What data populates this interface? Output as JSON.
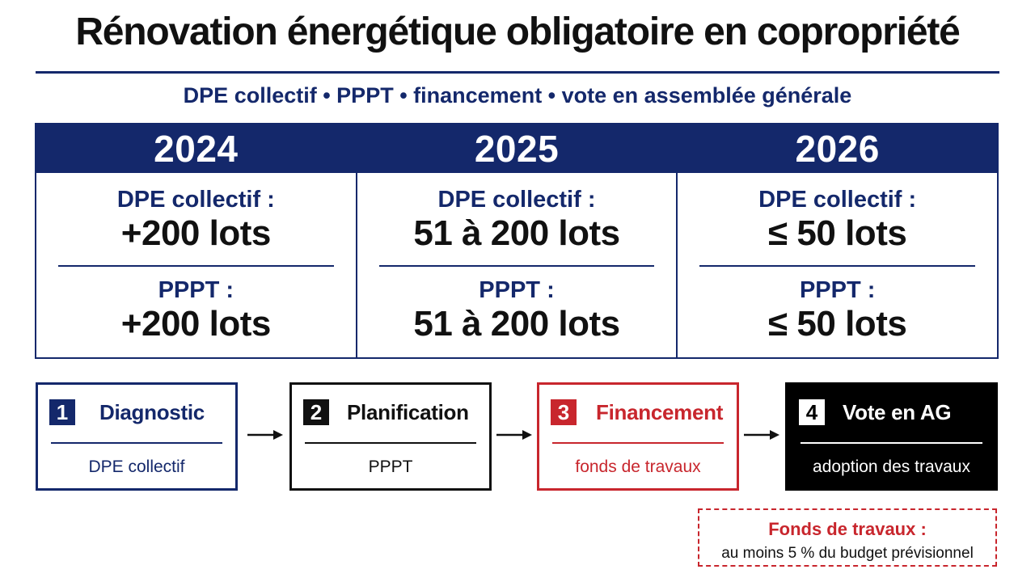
{
  "title": "Rénovation énergétique obligatoire en copropriété",
  "subtitle": "DPE collectif • PPPT • financement • vote en assemblée générale",
  "colors": {
    "navy": "#14286b",
    "red": "#c8262d",
    "black": "#000000"
  },
  "timeline": [
    {
      "year": "2024",
      "dpe_label": "DPE collectif :",
      "dpe_value": "+200 lots",
      "pppt_label": "PPPT :",
      "pppt_value": "+200 lots"
    },
    {
      "year": "2025",
      "dpe_label": "DPE collectif :",
      "dpe_value": "51 à 200 lots",
      "pppt_label": "PPPT :",
      "pppt_value": "51 à 200 lots"
    },
    {
      "year": "2026",
      "dpe_label": "DPE collectif :",
      "dpe_value": "≤ 50 lots",
      "pppt_label": "PPPT :",
      "pppt_value": "≤ 50 lots"
    }
  ],
  "steps": [
    {
      "number": "1",
      "name": "Diagnostic",
      "sub": "DPE collectif"
    },
    {
      "number": "2",
      "name": "Planification",
      "sub": "PPPT"
    },
    {
      "number": "3",
      "name": "Financement",
      "sub": "fonds de travaux"
    },
    {
      "number": "4",
      "name": "Vote en AG",
      "sub": "adoption des travaux"
    }
  ],
  "arrow_icon": "arrow-right-icon",
  "note": {
    "title": "Fonds de travaux :",
    "text": "au moins 5 % du budget prévisionnel"
  }
}
